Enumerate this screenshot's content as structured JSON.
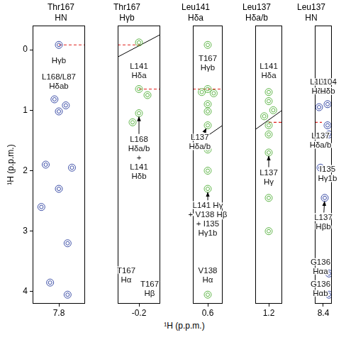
{
  "chart_data": {
    "type": "scatter",
    "x_label": "¹H (p.p.m.)",
    "y_label": "¹H (p.p.m.)",
    "ylim": [
      4.2,
      -0.4
    ],
    "yticks": [
      0,
      1,
      2,
      3,
      4
    ],
    "panels": [
      {
        "title": "Thr167 HN",
        "color": "#3b4da6",
        "xlim": [
          8.1,
          7.5
        ],
        "xticks": [
          7.8
        ],
        "peaks": [
          [
            7.8,
            -0.08
          ],
          [
            7.85,
            0.82
          ],
          [
            7.72,
            0.92
          ],
          [
            7.8,
            1.02
          ],
          [
            7.95,
            1.9
          ],
          [
            7.65,
            1.95
          ],
          [
            7.8,
            2.3
          ],
          [
            8.0,
            2.6
          ],
          [
            7.7,
            3.2
          ],
          [
            7.9,
            3.85
          ],
          [
            7.7,
            4.05
          ]
        ],
        "guides": [
          {
            "y": -0.08,
            "x": [
              7.8,
              7.5
            ]
          }
        ],
        "labels": [
          {
            "text": [
              "Hγb"
            ],
            "at": [
              7.8,
              0.18
            ]
          },
          {
            "text": [
              "L168/L87",
              "Hδab"
            ],
            "at": [
              7.8,
              0.52
            ]
          }
        ]
      },
      {
        "title": "Thr167 Hγb",
        "color": "#5fb548",
        "xlim": [
          0,
          -0.4
        ],
        "xticks": [
          -0.2
        ],
        "peaks": [
          [
            -0.2,
            -0.12
          ],
          [
            -0.2,
            0.65
          ],
          [
            -0.28,
            0.75
          ],
          [
            -0.2,
            1.05
          ],
          [
            -0.14,
            1.2
          ]
        ],
        "diagonal": [
          [
            0,
            0.12
          ],
          [
            -0.4,
            -0.25
          ]
        ],
        "guides": [
          {
            "y": -0.08,
            "x": [
              0,
              -0.22
            ]
          },
          {
            "y": 0.65,
            "x": [
              -0.2,
              -0.4
            ]
          }
        ],
        "labels": [
          {
            "text": [
              "L141",
              "Hδa"
            ],
            "at": [
              -0.2,
              0.35
            ]
          },
          {
            "text": [
              "L168",
              "Hδa/b",
              "+",
              "L141",
              "Hδb"
            ],
            "at": [
              -0.2,
              1.78
            ],
            "arrows": [
              [
                -0.2,
                1.05
              ]
            ]
          },
          {
            "text": [
              "T167",
              "Hα"
            ],
            "at": [
              -0.08,
              3.72
            ]
          },
          {
            "text": [
              "T167",
              "Hβ"
            ],
            "at": [
              -0.3,
              3.95
            ]
          }
        ]
      },
      {
        "title": "Leu141 Hδa",
        "color": "#5fb548",
        "xlim": [
          0.75,
          0.45
        ],
        "xticks": [
          0.6
        ],
        "peaks": [
          [
            0.6,
            -0.08
          ],
          [
            0.6,
            0.65
          ],
          [
            0.66,
            0.7
          ],
          [
            0.54,
            0.72
          ],
          [
            0.6,
            0.9
          ],
          [
            0.6,
            1.02
          ],
          [
            0.6,
            1.25
          ],
          [
            0.6,
            1.65
          ],
          [
            0.6,
            2.0
          ],
          [
            0.6,
            2.3
          ],
          [
            0.6,
            4.05
          ]
        ],
        "diagonal": [
          [
            0.6,
            1.42
          ],
          [
            0.45,
            1.25
          ]
        ],
        "guides": [
          {
            "y": 0.65,
            "x": [
              0.75,
              0.45
            ]
          }
        ],
        "labels": [
          {
            "text": [
              "T167",
              "Hγb"
            ],
            "at": [
              0.6,
              0.22
            ]
          },
          {
            "text": [
              "L137",
              "Hδa/b"
            ],
            "at": [
              0.68,
              1.52
            ],
            "arrows": [
              [
                0.6,
                1.25
              ]
            ]
          },
          {
            "text": [
              "L141 Hγ",
              "+ V138 Hβ",
              "+ I135",
              "Hγ1b"
            ],
            "at": [
              0.6,
              2.8
            ],
            "arrows": [
              [
                0.6,
                2.3
              ]
            ]
          },
          {
            "text": [
              "V138",
              "Hα"
            ],
            "at": [
              0.6,
              3.72
            ]
          }
        ]
      },
      {
        "title": "Leu137 Hδa/b",
        "color": "#5fb548",
        "xlim": [
          1.35,
          1.05
        ],
        "xticks": [
          1.2
        ],
        "peaks": [
          [
            1.2,
            0.7
          ],
          [
            1.2,
            0.85
          ],
          [
            1.15,
            1.0
          ],
          [
            1.25,
            1.1
          ],
          [
            1.2,
            1.25
          ],
          [
            1.2,
            1.4
          ],
          [
            1.2,
            1.7
          ],
          [
            1.2,
            2.45
          ],
          [
            1.2,
            3.0
          ]
        ],
        "diagonal": [
          [
            1.35,
            1.32
          ],
          [
            1.05,
            1.0
          ]
        ],
        "guides": [
          {
            "y": 1.2,
            "x": [
              1.2,
              1.05
            ]
          }
        ],
        "labels": [
          {
            "text": [
              "L141",
              "Hδa"
            ],
            "at": [
              1.2,
              0.35
            ]
          },
          {
            "text": [
              "L137",
              "Hγ"
            ],
            "at": [
              1.2,
              2.1
            ],
            "arrows": [
              [
                1.2,
                1.7
              ]
            ]
          }
        ]
      },
      {
        "title": "Leu137 HN",
        "color": "#3b4da6",
        "xlim": [
          8.7,
          8.1
        ],
        "xticks": [
          8.4
        ],
        "peaks": [
          [
            8.55,
            0.95
          ],
          [
            8.25,
            0.9
          ],
          [
            8.25,
            1.25
          ],
          [
            8.2,
            1.4
          ],
          [
            8.5,
            1.95
          ],
          [
            8.35,
            2.45
          ],
          [
            8.2,
            3.7
          ],
          [
            8.2,
            4.05
          ]
        ],
        "guides": [
          {
            "y": 1.2,
            "x": [
              8.7,
              8.45
            ]
          }
        ],
        "labels": [
          {
            "text": [
              "L104",
              "Hδa"
            ],
            "at": [
              8.55,
              0.6
            ]
          },
          {
            "text": [
              "L104",
              "Hδb"
            ],
            "at": [
              8.25,
              0.6
            ]
          },
          {
            "text": [
              "L137",
              "Hδa/b"
            ],
            "at": [
              8.5,
              1.5
            ]
          },
          {
            "text": [
              "I135",
              "Hγ1b"
            ],
            "at": [
              8.25,
              2.05
            ]
          },
          {
            "text": [
              "L137",
              "Hβb"
            ],
            "at": [
              8.4,
              2.85
            ],
            "arrows": [
              [
                8.35,
                2.45
              ]
            ]
          },
          {
            "text": [
              "G136",
              "Hαa"
            ],
            "at": [
              8.5,
              3.58
            ]
          },
          {
            "text": [
              "G136",
              "Hαb"
            ],
            "at": [
              8.5,
              3.95
            ]
          }
        ]
      }
    ]
  }
}
